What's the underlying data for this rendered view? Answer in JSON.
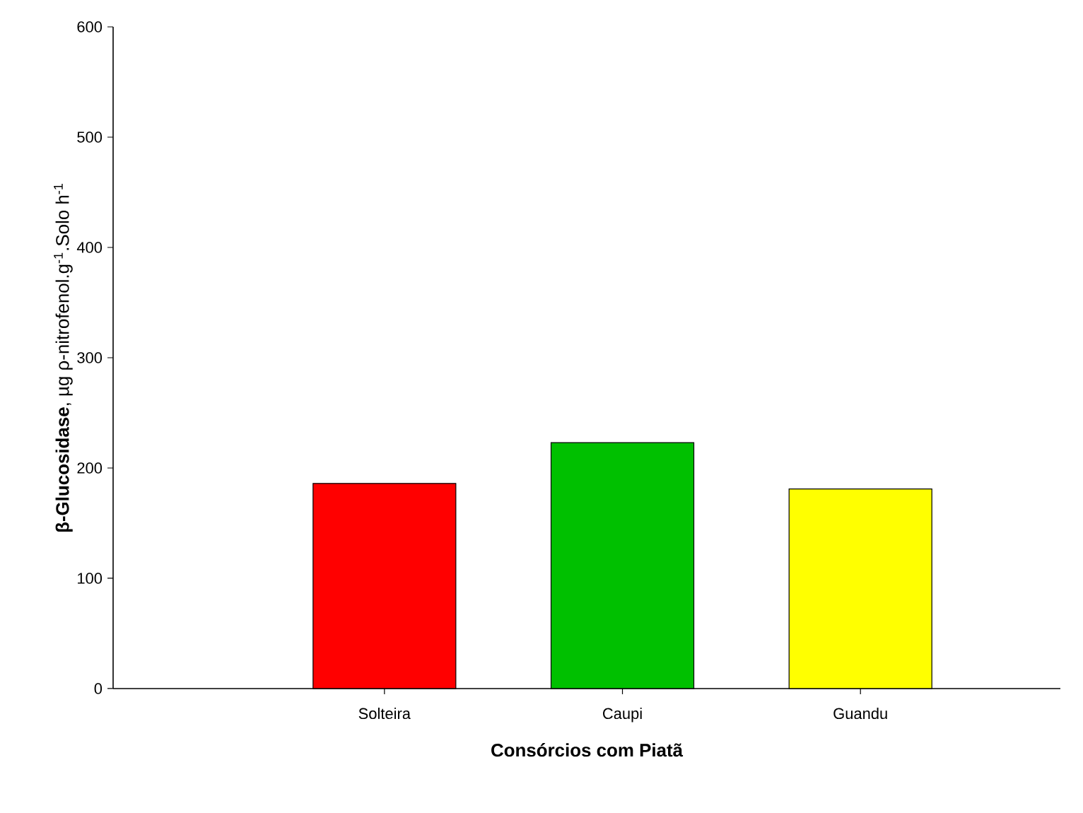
{
  "chart_data": {
    "type": "bar",
    "xlabel": "Consórcios com Piatã",
    "ylabel": "**β-Glucosidase**, µg ρ-nitrofenol.g$^{-1}$.Solo h$^{-1}$",
    "categories": [
      "Solteira",
      "Caupi",
      "Guandu"
    ],
    "values": [
      186,
      223,
      181
    ],
    "colors": [
      "#ff0000",
      "#00c000",
      "#ffff00"
    ],
    "ylim": [
      0,
      600
    ],
    "yticks": [
      0,
      100,
      200,
      300,
      400,
      500,
      600
    ],
    "grid": false
  }
}
